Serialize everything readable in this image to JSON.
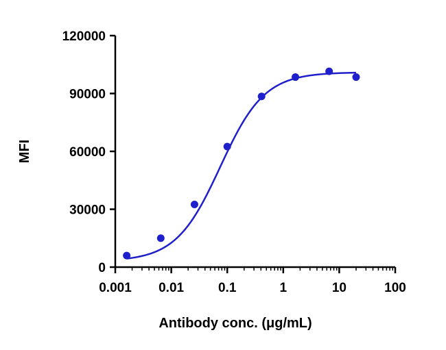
{
  "chart_data": {
    "type": "scatter",
    "title": "",
    "xlabel": "Antibody conc. (μg/mL)",
    "ylabel": "MFI",
    "x_scale": "log",
    "xlim": [
      0.001,
      100
    ],
    "ylim": [
      0,
      120000
    ],
    "x_ticks": [
      0.001,
      0.01,
      0.1,
      1,
      10,
      100
    ],
    "x_tick_labels": [
      "0.001",
      "0.01",
      "0.1",
      "1",
      "10",
      "100"
    ],
    "y_ticks": [
      0,
      30000,
      60000,
      90000,
      120000
    ],
    "y_tick_labels": [
      "0",
      "30000",
      "60000",
      "90000",
      "120000"
    ],
    "grid": false,
    "legend": "none",
    "color": "#1f1fcc",
    "series": [
      {
        "points": [
          {
            "x": 0.0016,
            "y": 6000
          },
          {
            "x": 0.0065,
            "y": 15000
          },
          {
            "x": 0.026,
            "y": 32500
          },
          {
            "x": 0.1,
            "y": 62500
          },
          {
            "x": 0.41,
            "y": 88500
          },
          {
            "x": 1.65,
            "y": 98500
          },
          {
            "x": 6.6,
            "y": 101500
          },
          {
            "x": 20,
            "y": 98500
          }
        ],
        "fit": "4PL",
        "fit_params": {
          "bottom": 3000,
          "top": 101000,
          "ec50": 0.075,
          "hill": 1.1
        }
      }
    ]
  }
}
